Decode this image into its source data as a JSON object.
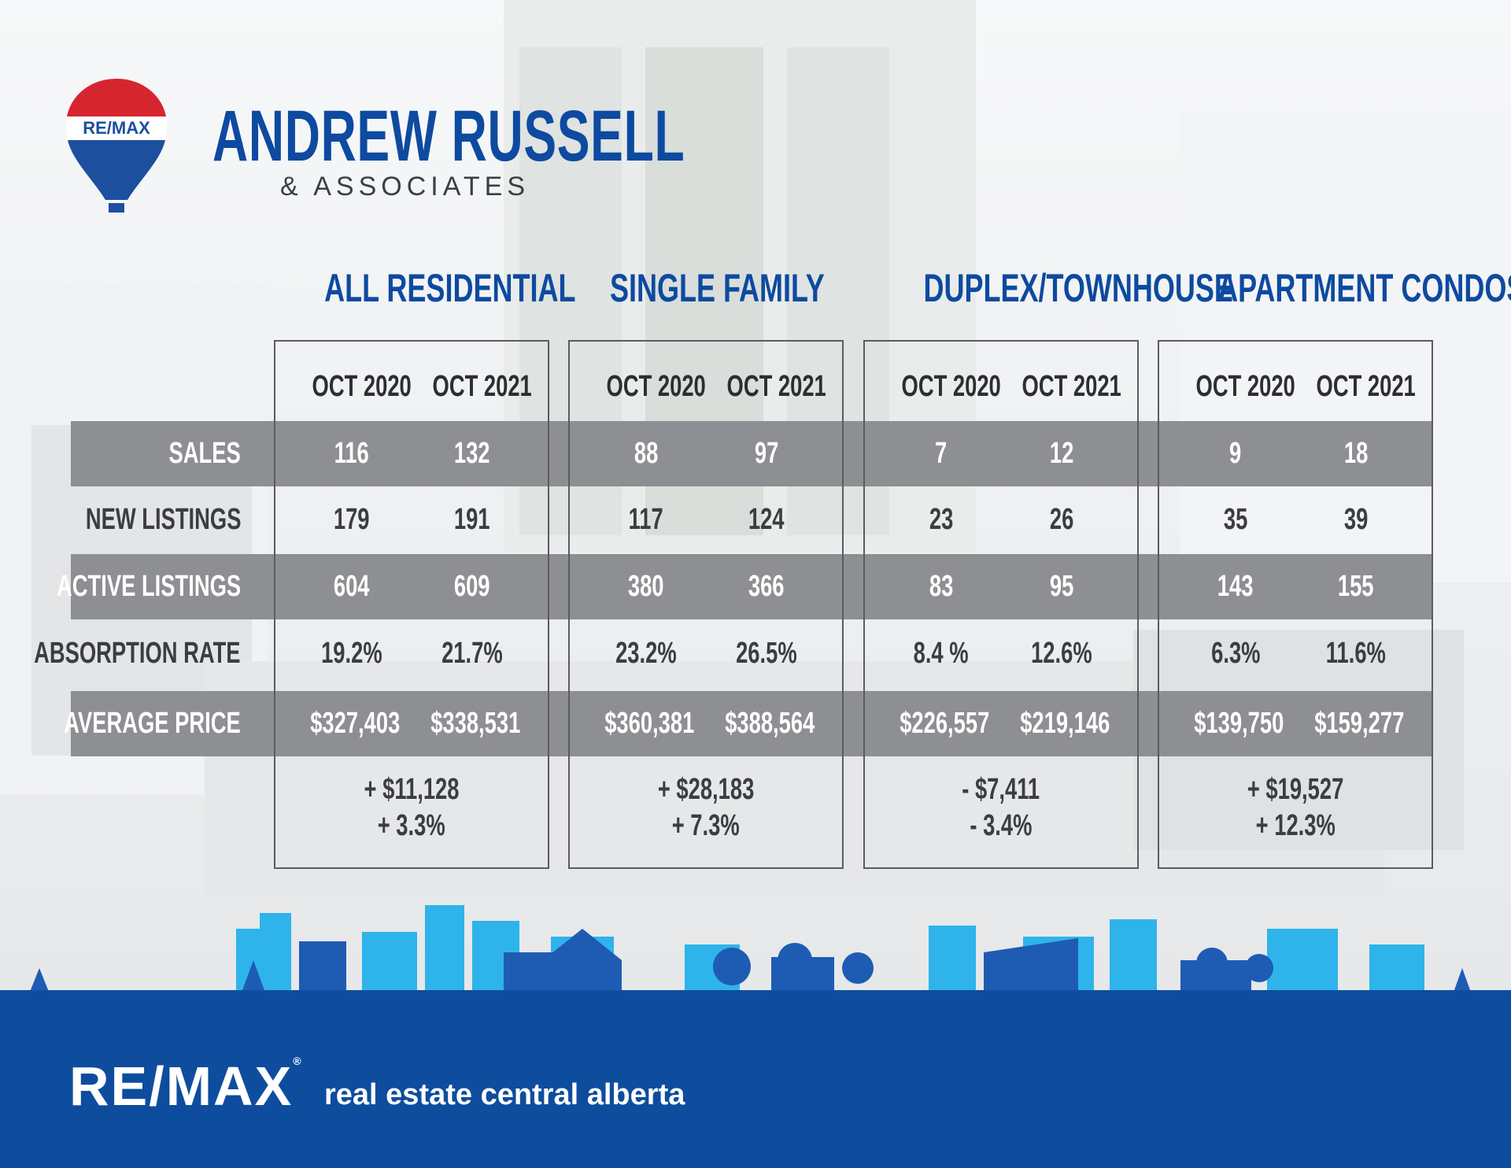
{
  "brand": {
    "logo_text": "RE/MAX",
    "name": "ANDREW RUSSELL",
    "subtitle": "& ASSOCIATES"
  },
  "categories": [
    {
      "title": "ALL RESIDENTIAL",
      "change_amount": "+ $11,128",
      "change_pct": "+ 3.3%"
    },
    {
      "title": "SINGLE FAMILY",
      "change_amount": "+ $28,183",
      "change_pct": "+ 7.3%"
    },
    {
      "title": "DUPLEX/TOWNHOUSE",
      "change_amount": "- $7,411",
      "change_pct": "- 3.4%"
    },
    {
      "title": "APARTMENT CONDOS",
      "change_amount": "+ $19,527",
      "change_pct": "+ 12.3%"
    }
  ],
  "period_labels": [
    "OCT 2020",
    "OCT 2021"
  ],
  "rows": [
    {
      "label": "SALES",
      "values": [
        "116",
        "132",
        "88",
        "97",
        "7",
        "12",
        "9",
        "18"
      ]
    },
    {
      "label": "NEW LISTINGS",
      "values": [
        "179",
        "191",
        "117",
        "124",
        "23",
        "26",
        "35",
        "39"
      ]
    },
    {
      "label": "ACTIVE LISTINGS",
      "values": [
        "604",
        "609",
        "380",
        "366",
        "83",
        "95",
        "143",
        "155"
      ]
    },
    {
      "label": "ABSORPTION RATE",
      "values": [
        "19.2%",
        "21.7%",
        "23.2%",
        "26.5%",
        "8.4 %",
        "12.6%",
        "6.3%",
        "11.6%"
      ]
    },
    {
      "label": "AVERAGE PRICE",
      "values": [
        "$327,403",
        "$338,531",
        "$360,381",
        "$388,564",
        "$226,557",
        "$219,146",
        "$139,750",
        "$159,277"
      ]
    }
  ],
  "footer": {
    "logo_text": "RE/MAX",
    "tagline": "real estate central alberta"
  },
  "colors": {
    "brand_blue": "#0d4aa0",
    "band_gray": "#8e8f92",
    "footer_blue": "#0e4d9e",
    "sky_light": "#2eb4ea"
  }
}
